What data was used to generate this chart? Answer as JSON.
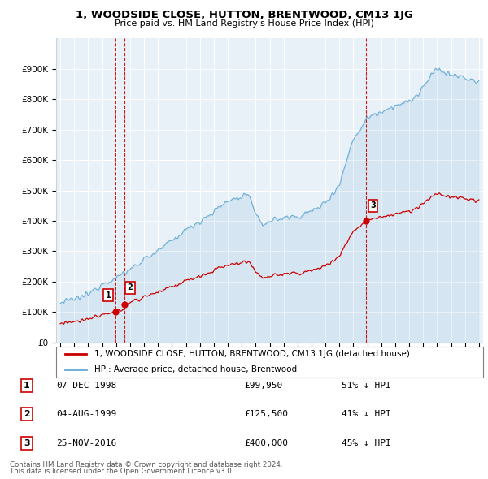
{
  "title": "1, WOODSIDE CLOSE, HUTTON, BRENTWOOD, CM13 1JG",
  "subtitle": "Price paid vs. HM Land Registry's House Price Index (HPI)",
  "hpi_label": "HPI: Average price, detached house, Brentwood",
  "price_label": "1, WOODSIDE CLOSE, HUTTON, BRENTWOOD, CM13 1JG (detached house)",
  "transactions": [
    {
      "num": 1,
      "date": "07-DEC-1998",
      "price": 99950,
      "hpi_pct": "51% ↓ HPI",
      "year": 1998.93
    },
    {
      "num": 2,
      "date": "04-AUG-1999",
      "price": 125500,
      "hpi_pct": "41% ↓ HPI",
      "year": 1999.59
    },
    {
      "num": 3,
      "date": "25-NOV-2016",
      "price": 400000,
      "hpi_pct": "45% ↓ HPI",
      "year": 2016.9
    }
  ],
  "footnote1": "Contains HM Land Registry data © Crown copyright and database right 2024.",
  "footnote2": "This data is licensed under the Open Government Licence v3.0.",
  "hpi_color": "#6baed6",
  "price_color": "#cc0000",
  "marker_color": "#cc0000",
  "vline_color": "#cc0000",
  "bg_color": "#e8f0f8",
  "ylim_max": 1000000,
  "xlim_min": 1994.7,
  "xlim_max": 2025.3,
  "yticks": [
    0,
    100000,
    200000,
    300000,
    400000,
    500000,
    600000,
    700000,
    800000,
    900000
  ],
  "ylabels": [
    "£0",
    "£100K",
    "£200K",
    "£300K",
    "£400K",
    "£500K",
    "£600K",
    "£700K",
    "£800K",
    "£900K"
  ]
}
